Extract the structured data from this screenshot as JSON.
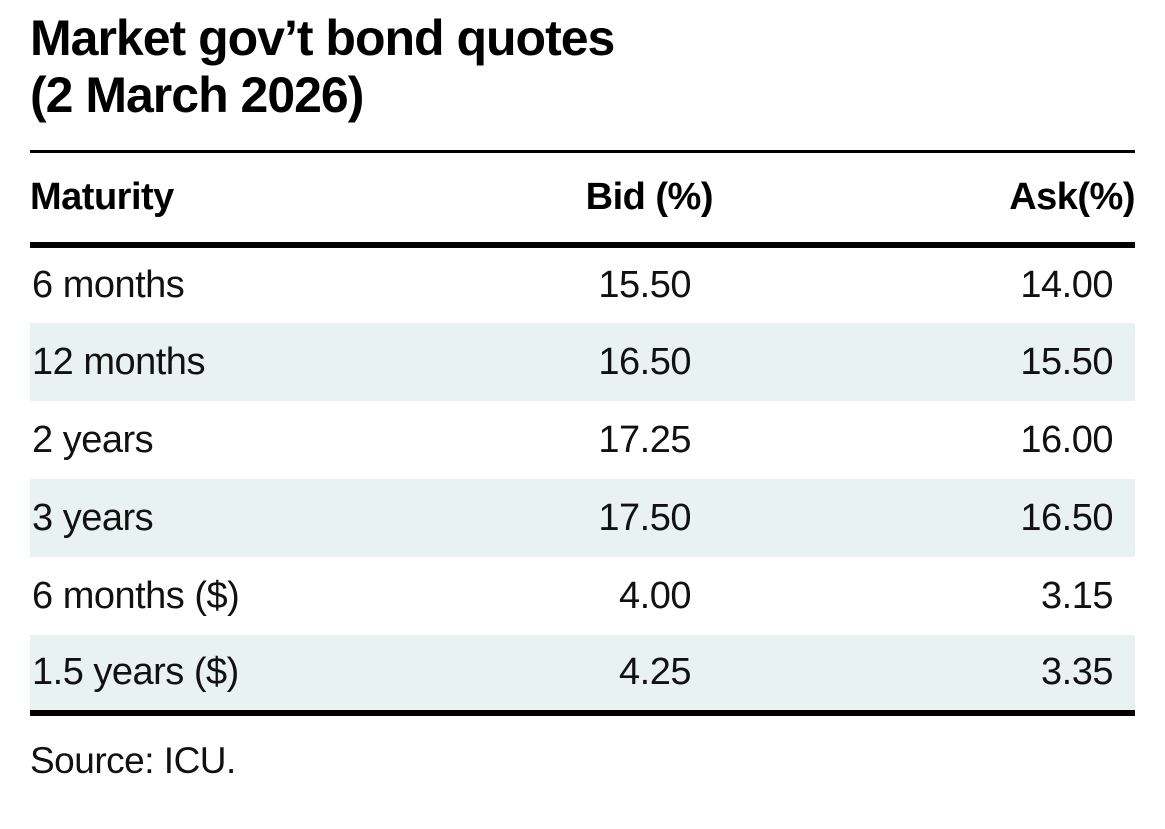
{
  "figure": {
    "title_line1": "Market gov’t bond quotes",
    "title_line2": "(2 March 2026)",
    "source": "Source: ICU."
  },
  "table": {
    "headers": {
      "maturity": "Maturity",
      "bid": "Bid (%)",
      "ask": "Ask(%)"
    },
    "rows": [
      {
        "maturity": "6 months",
        "bid": "15.50",
        "ask": "14.00"
      },
      {
        "maturity": "12 months",
        "bid": "16.50",
        "ask": "15.50"
      },
      {
        "maturity": "2 years",
        "bid": "17.25",
        "ask": "16.00"
      },
      {
        "maturity": "3 years",
        "bid": "17.50",
        "ask": "16.50"
      },
      {
        "maturity": "6 months ($)",
        "bid": "4.00",
        "ask": "3.15"
      },
      {
        "maturity": "1.5 years ($)",
        "bid": "4.25",
        "ask": "3.35"
      }
    ],
    "stripe_color": "#e8f3f1"
  },
  "chart_data": {
    "type": "table",
    "title": "Market gov’t bond quotes (2 March 2026)",
    "columns": [
      "Maturity",
      "Bid (%)",
      "Ask(%)"
    ],
    "rows": [
      [
        "6 months",
        15.5,
        14.0
      ],
      [
        "12 months",
        16.5,
        15.5
      ],
      [
        "2 years",
        17.25,
        16.0
      ],
      [
        "3 years",
        17.5,
        16.5
      ],
      [
        "6 months ($)",
        4.0,
        3.15
      ],
      [
        "1.5 years ($)",
        4.25,
        3.35
      ]
    ],
    "source": "Source: ICU.",
    "layout_hints": {
      "value_unit": "percent",
      "row_striping": "even rows pale teal #e8f3f1",
      "numeric_alignment": "right"
    }
  }
}
